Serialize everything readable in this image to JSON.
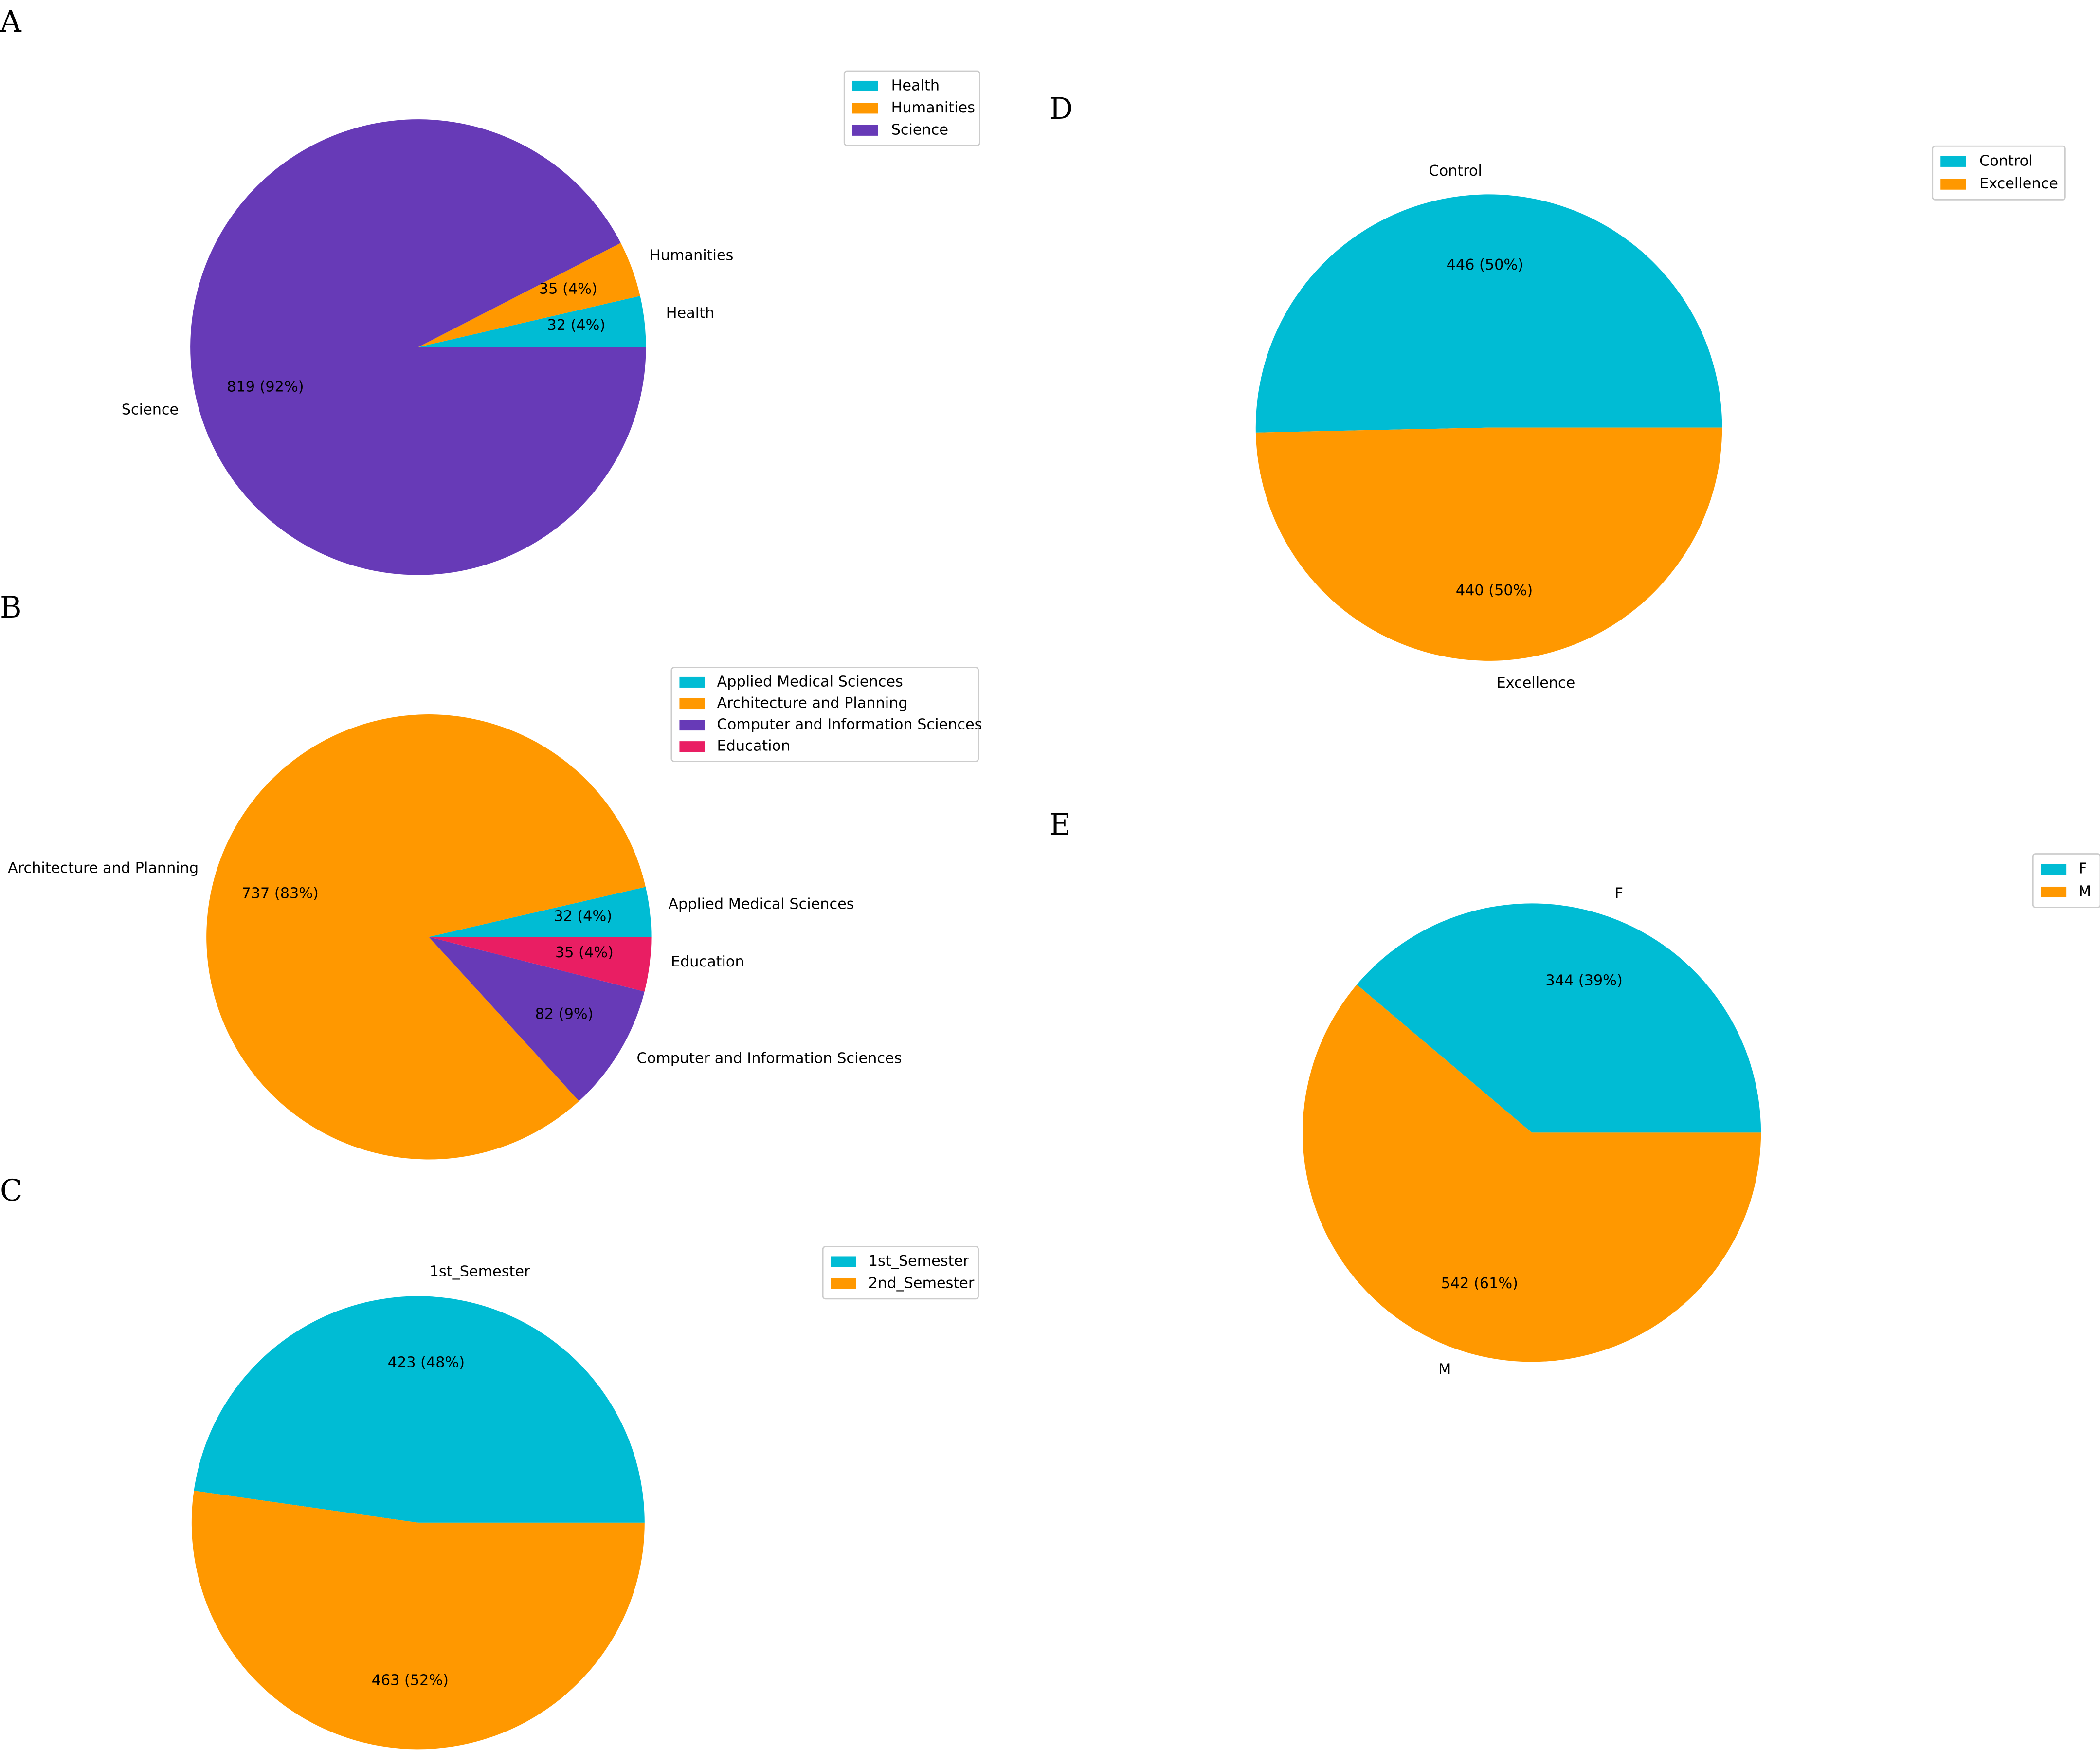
{
  "colors": {
    "cyan": "#00bcd4",
    "orange": "#ff9800",
    "purple": "#673ab7",
    "pink": "#e91e63",
    "legend_border": "#cccccc"
  },
  "chart_data": [
    {
      "panel": "A",
      "type": "pie",
      "labels": [
        "Health",
        "Humanities",
        "Science"
      ],
      "values": [
        32,
        35,
        819
      ],
      "value_labels": [
        "32 (4%)",
        "35 (4%)",
        "819 (92%)"
      ],
      "colors": [
        "#00bcd4",
        "#ff9800",
        "#673ab7"
      ],
      "legend": [
        "Health",
        "Humanities",
        "Science"
      ],
      "start_angle": 0,
      "direction": "counterclockwise",
      "legend_placement": "top-right"
    },
    {
      "panel": "B",
      "type": "pie",
      "labels": [
        "Applied Medical Sciences",
        "Architecture and Planning",
        "Computer and Information Sciences",
        "Education"
      ],
      "values": [
        32,
        737,
        82,
        35
      ],
      "value_labels": [
        "32 (4%)",
        "737 (83%)",
        "82 (9%)",
        "35 (4%)"
      ],
      "colors": [
        "#00bcd4",
        "#ff9800",
        "#673ab7",
        "#e91e63"
      ],
      "legend": [
        "Applied Medical Sciences",
        "Architecture and Planning",
        "Computer and Information Sciences",
        "Education"
      ],
      "start_angle": 0,
      "direction": "counterclockwise",
      "legend_placement": "top-right"
    },
    {
      "panel": "C",
      "type": "pie",
      "labels": [
        "1st_Semester",
        "2nd_Semester"
      ],
      "values": [
        423,
        463
      ],
      "value_labels": [
        "423 (48%)",
        "463 (52%)"
      ],
      "colors": [
        "#00bcd4",
        "#ff9800"
      ],
      "legend": [
        "1st_Semester",
        "2nd_Semester"
      ],
      "start_angle": 0,
      "direction": "counterclockwise",
      "legend_placement": "top-right"
    },
    {
      "panel": "D",
      "type": "pie",
      "labels": [
        "Control",
        "Excellence"
      ],
      "values": [
        446,
        440
      ],
      "value_labels": [
        "446 (50%)",
        "440 (50%)"
      ],
      "colors": [
        "#00bcd4",
        "#ff9800"
      ],
      "legend": [
        "Control",
        "Excellence"
      ],
      "start_angle": 0,
      "direction": "counterclockwise",
      "legend_placement": "top-right"
    },
    {
      "panel": "E",
      "type": "pie",
      "labels": [
        "F",
        "M"
      ],
      "values": [
        344,
        542
      ],
      "value_labels": [
        "344 (39%)",
        "542 (61%)"
      ],
      "colors": [
        "#00bcd4",
        "#ff9800"
      ],
      "legend": [
        "F",
        "M"
      ],
      "start_angle": 0,
      "direction": "counterclockwise",
      "legend_placement": "top-right"
    }
  ]
}
